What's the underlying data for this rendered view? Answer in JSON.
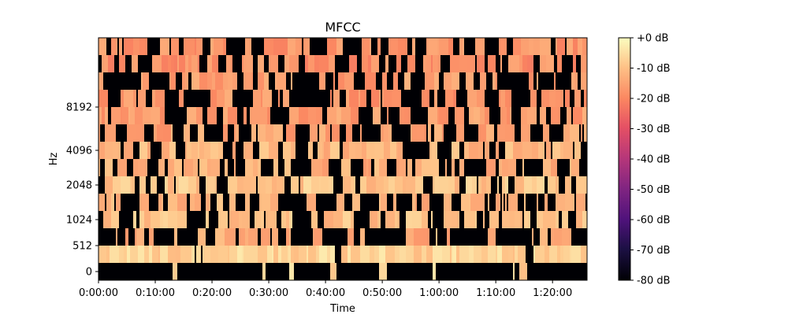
{
  "chart_data": {
    "type": "heatmap",
    "title": "MFCC",
    "xlabel": "Time",
    "ylabel": "Hz",
    "x_ticks": [
      "0:00:00",
      "0:10:00",
      "0:20:00",
      "0:30:00",
      "0:40:00",
      "0:50:00",
      "1:00:00",
      "1:10:00",
      "1:20:00"
    ],
    "x_tick_seconds": [
      0,
      600,
      1200,
      1800,
      2400,
      3000,
      3600,
      4200,
      4800
    ],
    "xlim_seconds": [
      0,
      5165
    ],
    "y_ticks": [
      "0",
      "512",
      "1024",
      "2048",
      "4096",
      "8192"
    ],
    "y_tick_rows": [
      0,
      1.5,
      3,
      5,
      7,
      9.5
    ],
    "n_rows": 14,
    "colorbar": {
      "ticks": [
        "+0 dB",
        "-10 dB",
        "-20 dB",
        "-30 dB",
        "-40 dB",
        "-50 dB",
        "-60 dB",
        "-70 dB",
        "-80 dB"
      ],
      "range_db": [
        -80,
        0
      ],
      "colormap": "magma"
    },
    "row_profiles_db": [
      {
        "row": 0,
        "dark_fraction": 0.95,
        "bright_level_db": -2
      },
      {
        "row": 1,
        "dark_fraction": 0.05,
        "bright_level_db": -3
      },
      {
        "row": 2,
        "dark_fraction": 0.7,
        "bright_level_db": -10
      },
      {
        "row": 3,
        "dark_fraction": 0.4,
        "bright_level_db": -6
      },
      {
        "row": 4,
        "dark_fraction": 0.55,
        "bright_level_db": -8
      },
      {
        "row": 5,
        "dark_fraction": 0.3,
        "bright_level_db": -5
      },
      {
        "row": 6,
        "dark_fraction": 0.6,
        "bright_level_db": -9
      },
      {
        "row": 7,
        "dark_fraction": 0.35,
        "bright_level_db": -8
      },
      {
        "row": 8,
        "dark_fraction": 0.55,
        "bright_level_db": -11
      },
      {
        "row": 9,
        "dark_fraction": 0.5,
        "bright_level_db": -12
      },
      {
        "row": 10,
        "dark_fraction": 0.55,
        "bright_level_db": -13
      },
      {
        "row": 11,
        "dark_fraction": 0.5,
        "bright_level_db": -12
      },
      {
        "row": 12,
        "dark_fraction": 0.5,
        "bright_level_db": -14
      },
      {
        "row": 13,
        "dark_fraction": 0.45,
        "bright_level_db": -13
      }
    ]
  }
}
